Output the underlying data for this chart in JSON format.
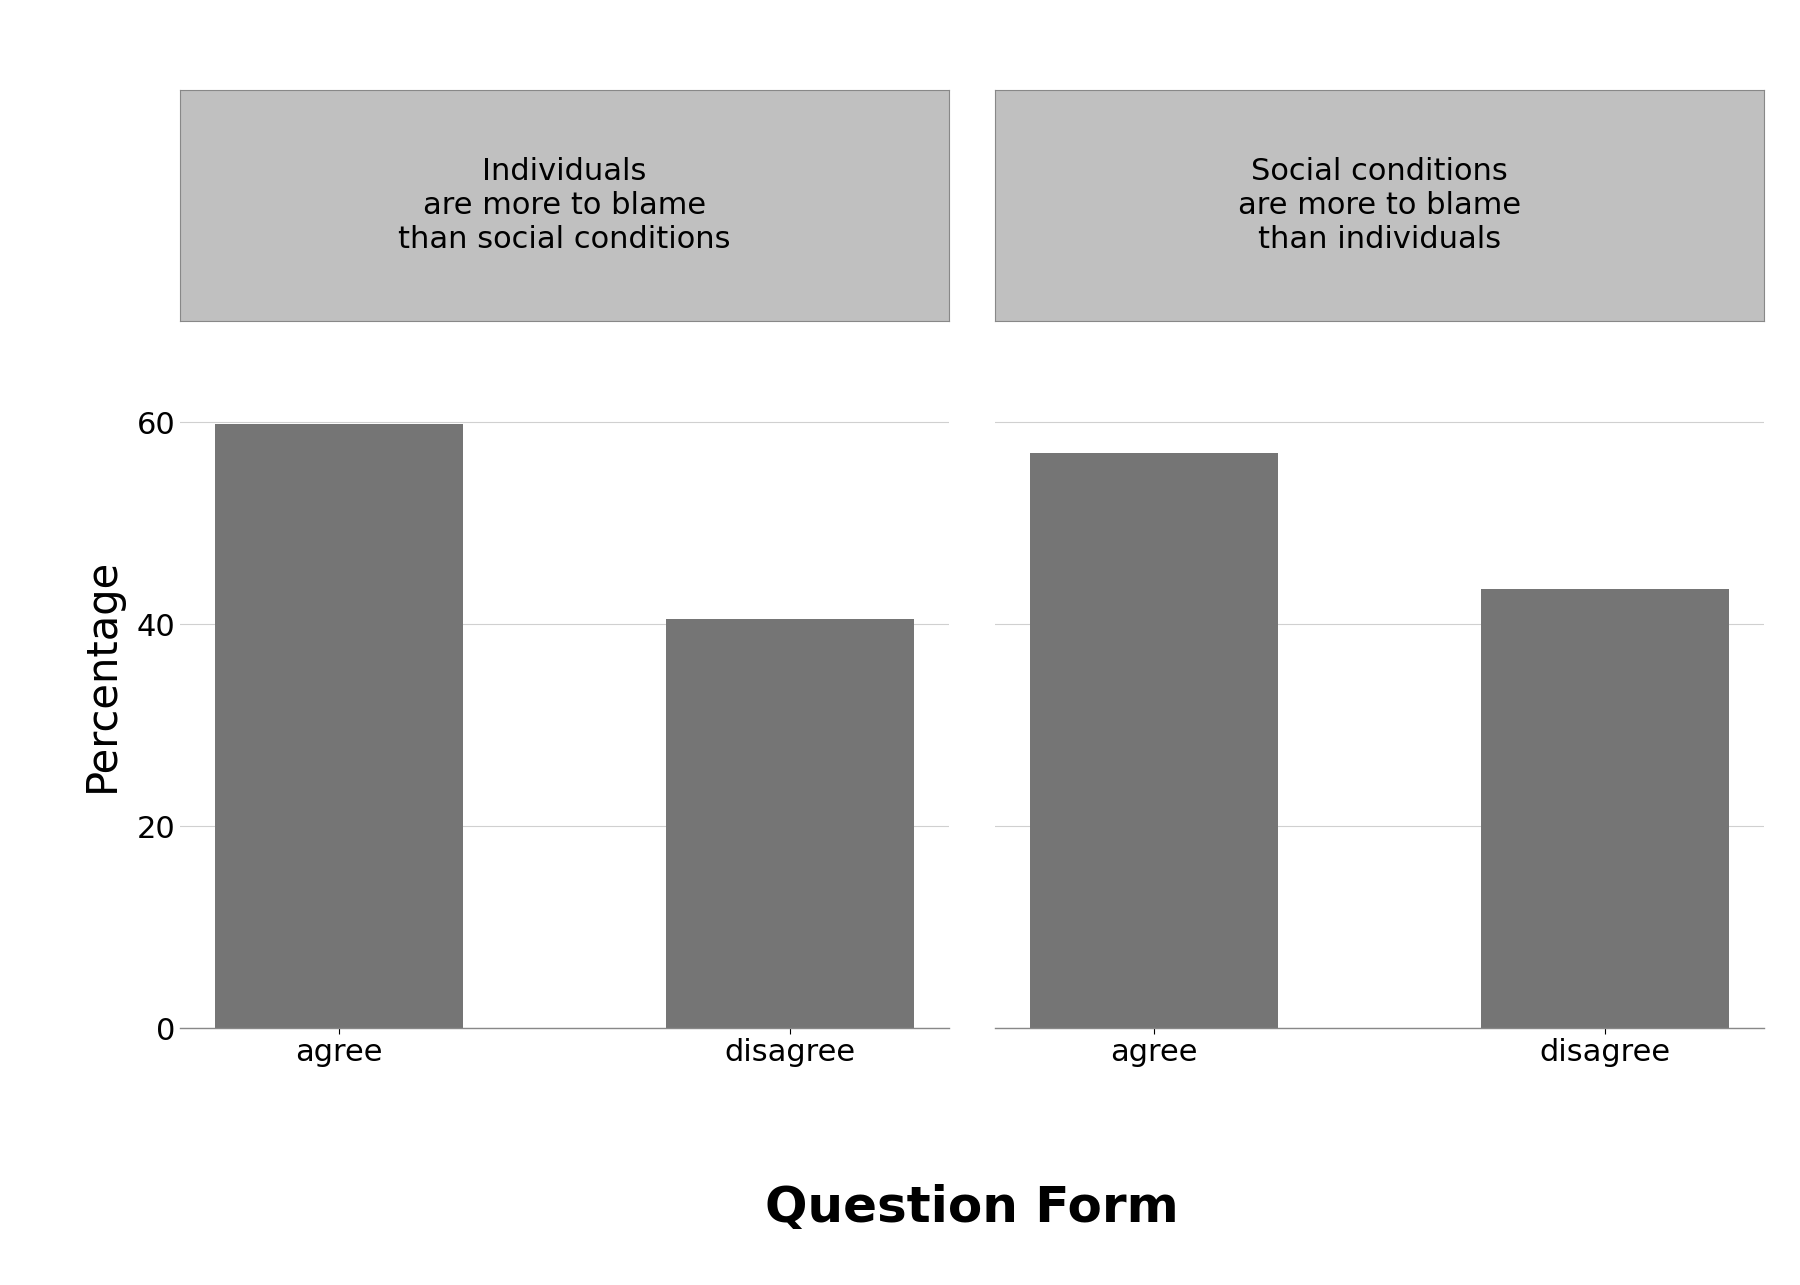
{
  "panel1_title": "Individuals\nare more to blame\nthan social conditions",
  "panel2_title": "Social conditions\nare more to blame\nthan individuals",
  "categories": [
    "agree",
    "disagree"
  ],
  "panel1_values": [
    59.8,
    40.5
  ],
  "panel2_values": [
    57.0,
    43.5
  ],
  "bar_color": "#757575",
  "title_bg_color": "#c0c0c0",
  "plot_bg_color": "#ffffff",
  "fig_bg_color": "#ffffff",
  "xlabel": "Question Form",
  "ylabel": "Percentage",
  "ylim": [
    0,
    70
  ],
  "yticks": [
    0,
    20,
    40,
    60
  ],
  "grid_color": "#d0d0d0",
  "axis_label_fontsize": 30,
  "tick_fontsize": 22,
  "panel_title_fontsize": 22,
  "xlabel_fontsize": 36
}
